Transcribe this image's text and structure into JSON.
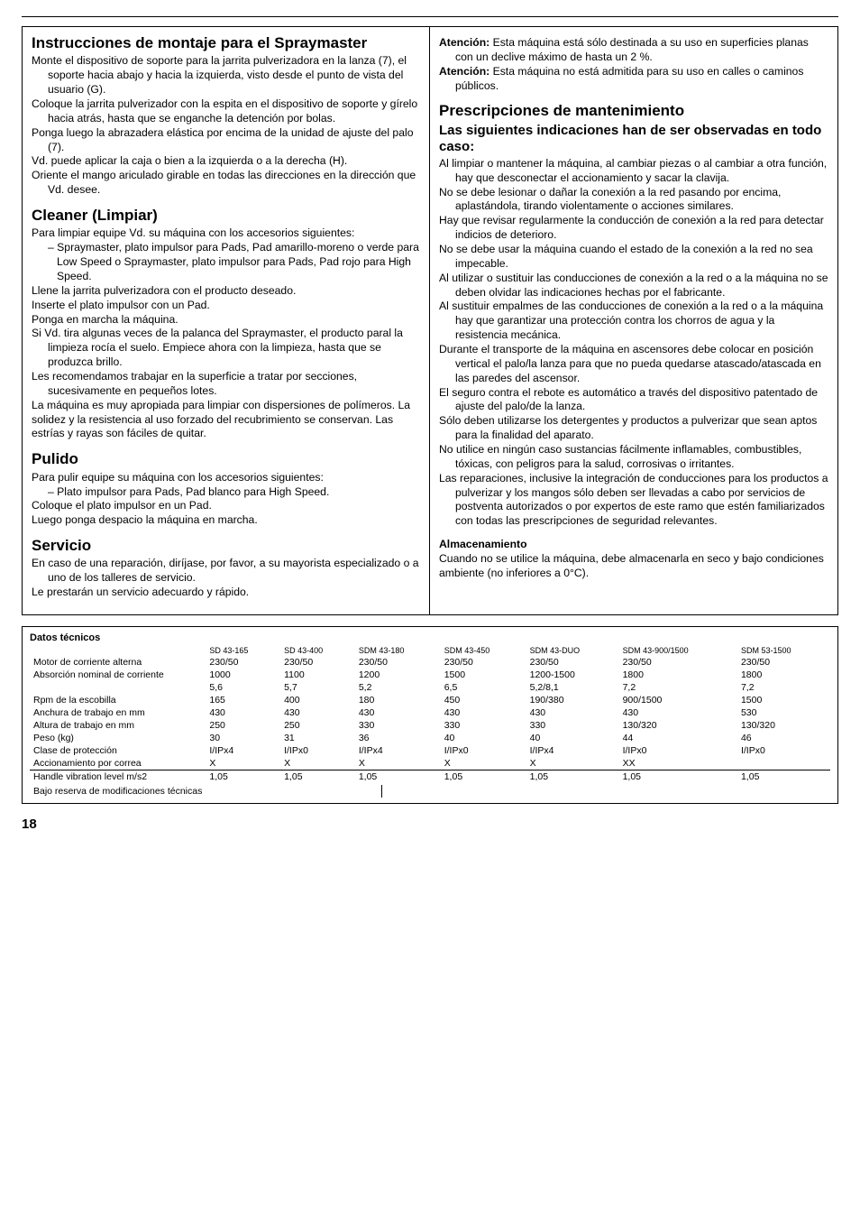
{
  "left": {
    "h1": "Instrucciones de montaje para el Spraymaster",
    "p1": "Monte el dispositivo de soporte para la jarrita pulverizadora en la lanza (7), el soporte hacia abajo y hacia la izquierda, visto desde el punto de vista del usuario (G).",
    "p2": "Coloque la jarrita pulverizador con la espita en el dispositivo de soporte y gírelo hacia atrás, hasta que se enganche la detención por bolas.",
    "p3": "Ponga luego la abrazadera elástica por encima de la unidad de ajuste del palo (7).",
    "p4": "Vd. puede aplicar la caja o bien a la izquierda o a la derecha (H).",
    "p5": "Oriente el mango ariculado girable en todas las direcciones en la dirección que Vd. desee.",
    "h2": "Cleaner (Limpiar)",
    "p6": "Para limpiar equipe Vd. su máquina con los accesorios siguientes:",
    "p7": "– Spraymaster, plato impulsor para Pads, Pad amarillo-moreno o verde para Low Speed o Spraymaster, plato impulsor para Pads, Pad rojo para High Speed.",
    "p8": "Llene la jarrita pulverizadora con el producto deseado.",
    "p9": "Inserte el plato impulsor con un Pad.",
    "p10": "Ponga en marcha la máquina.",
    "p11": "Si Vd. tira algunas veces de la palanca del Spraymaster, el producto paral la limpieza rocía el suelo. Empiece ahora con la limpieza, hasta que se produzca brillo.",
    "p12": "Les recomendamos trabajar en la superficie a tratar por secciones, sucesivamente en pequeños lotes.",
    "p13": "La máquina es muy apropiada para limpiar con dispersiones de polímeros. La solidez y la resistencia al uso forzado del recubrimiento se conservan. Las estrías y rayas son fáciles de quitar.",
    "h3": "Pulido",
    "p14": "Para pulir equipe su máquina con los accesorios siguientes:",
    "p15": "– Plato impulsor para Pads, Pad blanco para High Speed.",
    "p16": "Coloque el plato impulsor en un Pad.",
    "p17": "Luego ponga despacio la máquina en marcha.",
    "h4": "Servicio",
    "p18": "En caso de una reparación, diríjase, por favor, a su mayorista especializado o a uno de los talleres de servicio.",
    "p19": "Le prestarán un servicio adecuardo y rápido."
  },
  "right": {
    "p1a": "Atención:",
    "p1b": " Esta máquina está sólo destinada a su uso en superficies planas con un declive máximo de hasta un 2 %.",
    "p2a": "Atención:",
    "p2b": "  Esta máquina no está admitida para su uso en calles o caminos públicos.",
    "h1": "Prescripciones de mantenimiento",
    "h1b": "Las siguientes indicaciones han de ser observadas en todo caso:",
    "p3": "Al limpiar o mantener la máquina, al cambiar piezas o al cambiar a otra función, hay que desconectar el accionamiento y sacar la clavija.",
    "p4": "No se debe lesionar o dañar la conexión a la red pasando por encima, aplastándola, tirando violentamente o acciones similares.",
    "p5": "Hay que revisar regularmente la conducción de conexión a la red para detectar indicios de deterioro.",
    "p6": "No se debe usar la máquina cuando el estado de la conexión a la red no sea impecable.",
    "p7": "Al utilizar o sustituir las conducciones de conexión a la red o a la máquina no se deben olvidar las indicaciones hechas por el fabricante.",
    "p8": "Al sustituir empalmes de las conducciones de conexión a la red o a la máquina hay que garantizar una protección contra los chorros de agua y la resistencia mecánica.",
    "p9": "Durante el transporte de la máquina en ascensores debe colocar en posición vertical el palo/la lanza para que no pueda quedarse atascado/atascada en las paredes del ascensor.",
    "p10": "El seguro contra el rebote es automático a través del dispositivo patentado de ajuste del palo/de la lanza.",
    "p11": "Sólo deben utilizarse los detergentes y productos a pulverizar que sean aptos para la finalidad del aparato.",
    "p12": "No utilice en ningún caso sustancias fácilmente inflamables, combustibles, tóxicas, con peligros para la salud, corrosivas o irritantes.",
    "p13": "Las reparaciones, inclusive la integración de conducciones para los productos a pulverizar y los mangos sólo deben ser llevadas a cabo por servicios de postventa autorizados o por expertos de este ramo que estén familiarizados con todas las prescripciones de seguridad relevantes.",
    "h2": "Almacenamiento",
    "p14": "Cuando no se utilice la máquina, debe almacenarla en seco y bajo condiciones ambiente (no inferiores a 0°C)."
  },
  "table": {
    "title": "Datos técnicos",
    "headers": [
      "",
      "SD 43-165",
      "SD 43-400",
      "SDM 43-180",
      "SDM 43-450",
      "SDM 43-DUO",
      "SDM 43-900/1500",
      "SDM 53-1500"
    ],
    "rows": [
      [
        "Motor de corriente alterna",
        "230/50",
        "230/50",
        "230/50",
        "230/50",
        "230/50",
        "230/50",
        "230/50"
      ],
      [
        "Absorción nominal de corriente",
        "1000",
        "1100",
        "1200",
        "1500",
        "1200-1500",
        "1800",
        "1800"
      ],
      [
        "",
        "5,6",
        "5,7",
        "5,2",
        "6,5",
        "5,2/8,1",
        "7,2",
        "7,2"
      ],
      [
        "Rpm de la escobilla",
        "165",
        "400",
        "180",
        "450",
        "190/380",
        "900/1500",
        "1500"
      ],
      [
        "Anchura de trabajo en mm",
        "430",
        "430",
        "430",
        "430",
        "430",
        "430",
        "530"
      ],
      [
        "Altura de trabajo en mm",
        "250",
        "250",
        "330",
        "330",
        "330",
        "130/320",
        "130/320"
      ],
      [
        "Peso (kg)",
        "30",
        "31",
        "36",
        "40",
        "40",
        "44",
        "46"
      ],
      [
        "Clase de protección",
        "I/IPx4",
        "I/IPx0",
        "I/IPx4",
        "I/IPx0",
        "I/IPx4",
        "I/IPx0",
        "I/IPx0"
      ],
      [
        "Accionamiento por correa",
        "X",
        "X",
        "X",
        "X",
        "X",
        "XX",
        ""
      ],
      [
        "Handle vibration level m/s2",
        "1,05",
        "1,05",
        "1,05",
        "1,05",
        "1,05",
        "1,05",
        "1,05"
      ]
    ],
    "footer": "Bajo reserva de modificaciones técnicas"
  },
  "page": "18"
}
